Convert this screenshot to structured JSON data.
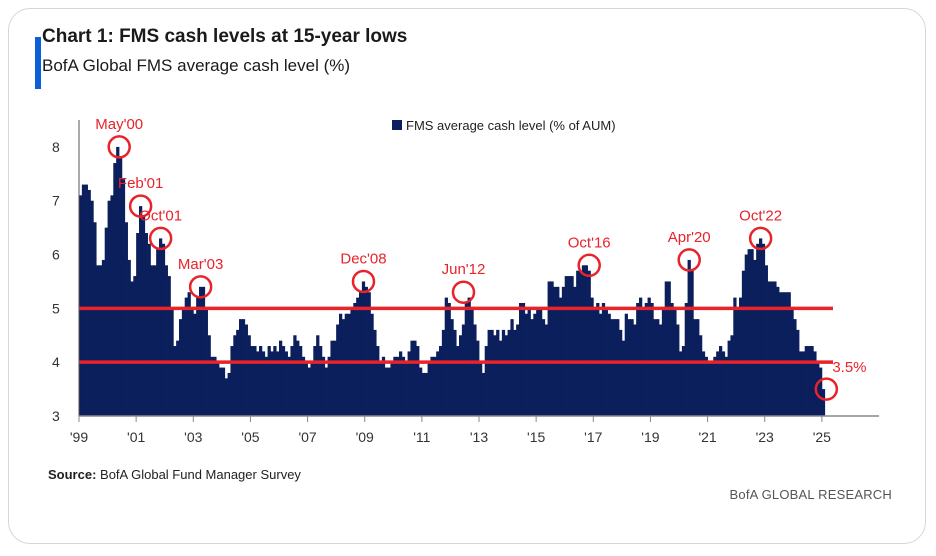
{
  "header": {
    "title": "Chart 1: FMS cash levels at 15-year lows",
    "subtitle": "BofA Global FMS average cash level (%)"
  },
  "footer": {
    "source_label": "Source:",
    "source_text": "BofA Global Fund Manager Survey",
    "branding": "BofA GLOBAL RESEARCH"
  },
  "colors": {
    "bars": "#0b1f5c",
    "reference_lines": "#e8232a",
    "annotation": "#e8232a",
    "title_accent": "#0a5fd6"
  },
  "chart_data": {
    "type": "bar",
    "title": "Chart 1: FMS cash levels at 15-year lows",
    "subtitle": "BofA Global FMS average cash level (%)",
    "legend": {
      "label": "FMS average cash level (% of AUM)",
      "position": "top-center"
    },
    "xlim": [
      1999,
      2027
    ],
    "ylim": [
      3,
      8.5
    ],
    "yticks": [
      3,
      4,
      5,
      6,
      7,
      8
    ],
    "xticks": [
      {
        "year": 1999,
        "label": "'99"
      },
      {
        "year": 2001,
        "label": "'01"
      },
      {
        "year": 2003,
        "label": "'03"
      },
      {
        "year": 2005,
        "label": "'05"
      },
      {
        "year": 2007,
        "label": "'07"
      },
      {
        "year": 2009,
        "label": "'09"
      },
      {
        "year": 2011,
        "label": "'11"
      },
      {
        "year": 2013,
        "label": "'13"
      },
      {
        "year": 2015,
        "label": "'15"
      },
      {
        "year": 2017,
        "label": "'17"
      },
      {
        "year": 2019,
        "label": "'19"
      },
      {
        "year": 2021,
        "label": "'21"
      },
      {
        "year": 2023,
        "label": "'23"
      },
      {
        "year": 2025,
        "label": "'25"
      }
    ],
    "grid": false,
    "reference_lines": [
      5.0,
      4.0
    ],
    "series": [
      {
        "name": "FMS average cash level (% of AUM)",
        "points": [
          [
            1999.0,
            7.1
          ],
          [
            1999.1,
            7.3
          ],
          [
            1999.2,
            7.3
          ],
          [
            1999.3,
            7.2
          ],
          [
            1999.4,
            7.0
          ],
          [
            1999.5,
            6.6
          ],
          [
            1999.6,
            5.8
          ],
          [
            1999.7,
            5.8
          ],
          [
            1999.8,
            5.9
          ],
          [
            1999.9,
            6.5
          ],
          [
            2000.0,
            7.0
          ],
          [
            2000.1,
            7.1
          ],
          [
            2000.2,
            7.7
          ],
          [
            2000.3,
            8.0
          ],
          [
            2000.4,
            7.8
          ],
          [
            2000.5,
            7.4
          ],
          [
            2000.6,
            6.6
          ],
          [
            2000.7,
            5.9
          ],
          [
            2000.8,
            5.5
          ],
          [
            2000.9,
            5.6
          ],
          [
            2001.0,
            6.4
          ],
          [
            2001.1,
            6.9
          ],
          [
            2001.2,
            6.7
          ],
          [
            2001.3,
            6.4
          ],
          [
            2001.4,
            6.2
          ],
          [
            2001.5,
            5.8
          ],
          [
            2001.6,
            5.8
          ],
          [
            2001.7,
            6.1
          ],
          [
            2001.8,
            6.3
          ],
          [
            2001.9,
            6.2
          ],
          [
            2002.0,
            5.8
          ],
          [
            2002.1,
            5.6
          ],
          [
            2002.2,
            5.0
          ],
          [
            2002.3,
            4.3
          ],
          [
            2002.4,
            4.4
          ],
          [
            2002.5,
            4.8
          ],
          [
            2002.6,
            5.0
          ],
          [
            2002.7,
            5.2
          ],
          [
            2002.8,
            5.3
          ],
          [
            2002.9,
            5.0
          ],
          [
            2003.0,
            4.9
          ],
          [
            2003.1,
            5.2
          ],
          [
            2003.2,
            5.4
          ],
          [
            2003.3,
            5.4
          ],
          [
            2003.4,
            5.0
          ],
          [
            2003.5,
            4.5
          ],
          [
            2003.6,
            4.1
          ],
          [
            2003.7,
            4.1
          ],
          [
            2003.8,
            4.0
          ],
          [
            2003.9,
            3.9
          ],
          [
            2004.0,
            3.9
          ],
          [
            2004.1,
            3.7
          ],
          [
            2004.2,
            3.8
          ],
          [
            2004.3,
            4.3
          ],
          [
            2004.4,
            4.5
          ],
          [
            2004.5,
            4.6
          ],
          [
            2004.6,
            4.8
          ],
          [
            2004.7,
            4.8
          ],
          [
            2004.8,
            4.7
          ],
          [
            2004.9,
            4.5
          ],
          [
            2005.0,
            4.3
          ],
          [
            2005.1,
            4.3
          ],
          [
            2005.2,
            4.2
          ],
          [
            2005.3,
            4.3
          ],
          [
            2005.4,
            4.2
          ],
          [
            2005.5,
            4.1
          ],
          [
            2005.6,
            4.3
          ],
          [
            2005.7,
            4.2
          ],
          [
            2005.8,
            4.3
          ],
          [
            2005.9,
            4.2
          ],
          [
            2006.0,
            4.4
          ],
          [
            2006.1,
            4.3
          ],
          [
            2006.2,
            4.2
          ],
          [
            2006.3,
            4.1
          ],
          [
            2006.4,
            4.3
          ],
          [
            2006.5,
            4.5
          ],
          [
            2006.6,
            4.4
          ],
          [
            2006.7,
            4.3
          ],
          [
            2006.8,
            4.1
          ],
          [
            2006.9,
            4.0
          ],
          [
            2007.0,
            3.9
          ],
          [
            2007.1,
            4.0
          ],
          [
            2007.2,
            4.3
          ],
          [
            2007.3,
            4.5
          ],
          [
            2007.4,
            4.3
          ],
          [
            2007.5,
            4.1
          ],
          [
            2007.6,
            3.9
          ],
          [
            2007.7,
            4.1
          ],
          [
            2007.8,
            4.4
          ],
          [
            2007.9,
            4.4
          ],
          [
            2008.0,
            4.7
          ],
          [
            2008.1,
            4.9
          ],
          [
            2008.2,
            4.8
          ],
          [
            2008.3,
            4.9
          ],
          [
            2008.4,
            4.9
          ],
          [
            2008.5,
            5.0
          ],
          [
            2008.6,
            5.1
          ],
          [
            2008.7,
            5.2
          ],
          [
            2008.8,
            5.3
          ],
          [
            2008.9,
            5.5
          ],
          [
            2009.0,
            5.4
          ],
          [
            2009.1,
            5.3
          ],
          [
            2009.2,
            4.9
          ],
          [
            2009.3,
            4.6
          ],
          [
            2009.4,
            4.3
          ],
          [
            2009.5,
            4.0
          ],
          [
            2009.6,
            4.1
          ],
          [
            2009.7,
            3.9
          ],
          [
            2009.8,
            3.9
          ],
          [
            2009.9,
            4.0
          ],
          [
            2010.0,
            4.1
          ],
          [
            2010.1,
            4.1
          ],
          [
            2010.2,
            4.2
          ],
          [
            2010.3,
            4.1
          ],
          [
            2010.4,
            4.0
          ],
          [
            2010.5,
            4.2
          ],
          [
            2010.6,
            4.4
          ],
          [
            2010.7,
            4.4
          ],
          [
            2010.8,
            4.3
          ],
          [
            2010.9,
            3.9
          ],
          [
            2011.0,
            3.8
          ],
          [
            2011.1,
            3.8
          ],
          [
            2011.2,
            4.0
          ],
          [
            2011.3,
            4.1
          ],
          [
            2011.4,
            4.1
          ],
          [
            2011.5,
            4.2
          ],
          [
            2011.6,
            4.3
          ],
          [
            2011.7,
            4.6
          ],
          [
            2011.8,
            5.2
          ],
          [
            2011.9,
            5.1
          ],
          [
            2012.0,
            4.8
          ],
          [
            2012.1,
            4.6
          ],
          [
            2012.2,
            4.3
          ],
          [
            2012.3,
            4.5
          ],
          [
            2012.4,
            4.7
          ],
          [
            2012.5,
            5.1
          ],
          [
            2012.6,
            5.2
          ],
          [
            2012.7,
            5.0
          ],
          [
            2012.8,
            4.7
          ],
          [
            2012.9,
            4.4
          ],
          [
            2013.0,
            4.0
          ],
          [
            2013.1,
            3.8
          ],
          [
            2013.2,
            4.3
          ],
          [
            2013.3,
            4.6
          ],
          [
            2013.4,
            4.6
          ],
          [
            2013.5,
            4.5
          ],
          [
            2013.6,
            4.6
          ],
          [
            2013.7,
            4.4
          ],
          [
            2013.8,
            4.6
          ],
          [
            2013.9,
            4.5
          ],
          [
            2014.0,
            4.6
          ],
          [
            2014.1,
            4.8
          ],
          [
            2014.2,
            4.6
          ],
          [
            2014.3,
            4.7
          ],
          [
            2014.4,
            5.1
          ],
          [
            2014.5,
            5.1
          ],
          [
            2014.6,
            4.9
          ],
          [
            2014.7,
            5.0
          ],
          [
            2014.8,
            4.8
          ],
          [
            2014.9,
            4.9
          ],
          [
            2015.0,
            5.0
          ],
          [
            2015.1,
            5.0
          ],
          [
            2015.2,
            4.8
          ],
          [
            2015.3,
            4.7
          ],
          [
            2015.4,
            5.5
          ],
          [
            2015.5,
            5.5
          ],
          [
            2015.6,
            5.4
          ],
          [
            2015.7,
            5.4
          ],
          [
            2015.8,
            5.2
          ],
          [
            2015.9,
            5.4
          ],
          [
            2016.0,
            5.6
          ],
          [
            2016.1,
            5.6
          ],
          [
            2016.2,
            5.6
          ],
          [
            2016.3,
            5.4
          ],
          [
            2016.4,
            5.7
          ],
          [
            2016.5,
            5.7
          ],
          [
            2016.6,
            5.8
          ],
          [
            2016.7,
            5.8
          ],
          [
            2016.8,
            5.7
          ],
          [
            2016.9,
            5.2
          ],
          [
            2017.0,
            5.0
          ],
          [
            2017.1,
            5.1
          ],
          [
            2017.2,
            4.9
          ],
          [
            2017.3,
            5.1
          ],
          [
            2017.4,
            5.0
          ],
          [
            2017.5,
            4.9
          ],
          [
            2017.6,
            4.8
          ],
          [
            2017.7,
            4.8
          ],
          [
            2017.8,
            4.8
          ],
          [
            2017.9,
            4.6
          ],
          [
            2018.0,
            4.4
          ],
          [
            2018.1,
            4.9
          ],
          [
            2018.2,
            4.8
          ],
          [
            2018.3,
            4.8
          ],
          [
            2018.4,
            4.7
          ],
          [
            2018.5,
            5.1
          ],
          [
            2018.6,
            5.2
          ],
          [
            2018.7,
            5.0
          ],
          [
            2018.8,
            5.1
          ],
          [
            2018.9,
            5.2
          ],
          [
            2019.0,
            5.1
          ],
          [
            2019.1,
            4.8
          ],
          [
            2019.2,
            4.8
          ],
          [
            2019.3,
            4.7
          ],
          [
            2019.4,
            5.0
          ],
          [
            2019.5,
            5.5
          ],
          [
            2019.6,
            5.5
          ],
          [
            2019.7,
            5.1
          ],
          [
            2019.8,
            5.0
          ],
          [
            2019.9,
            4.7
          ],
          [
            2020.0,
            4.2
          ],
          [
            2020.1,
            4.3
          ],
          [
            2020.2,
            5.1
          ],
          [
            2020.3,
            5.9
          ],
          [
            2020.4,
            5.7
          ],
          [
            2020.5,
            4.8
          ],
          [
            2020.6,
            4.8
          ],
          [
            2020.7,
            4.5
          ],
          [
            2020.8,
            4.2
          ],
          [
            2020.9,
            4.1
          ],
          [
            2021.0,
            4.0
          ],
          [
            2021.1,
            4.0
          ],
          [
            2021.2,
            4.1
          ],
          [
            2021.3,
            4.2
          ],
          [
            2021.4,
            4.3
          ],
          [
            2021.5,
            4.2
          ],
          [
            2021.6,
            4.1
          ],
          [
            2021.7,
            4.4
          ],
          [
            2021.8,
            4.5
          ],
          [
            2021.9,
            5.2
          ],
          [
            2022.0,
            5.0
          ],
          [
            2022.1,
            5.2
          ],
          [
            2022.2,
            5.7
          ],
          [
            2022.3,
            6.0
          ],
          [
            2022.4,
            6.1
          ],
          [
            2022.5,
            6.1
          ],
          [
            2022.6,
            5.9
          ],
          [
            2022.7,
            6.2
          ],
          [
            2022.8,
            6.3
          ],
          [
            2022.9,
            6.2
          ],
          [
            2023.0,
            5.8
          ],
          [
            2023.1,
            5.5
          ],
          [
            2023.2,
            5.5
          ],
          [
            2023.3,
            5.5
          ],
          [
            2023.4,
            5.4
          ],
          [
            2023.5,
            5.3
          ],
          [
            2023.6,
            5.3
          ],
          [
            2023.7,
            5.3
          ],
          [
            2023.8,
            5.3
          ],
          [
            2023.9,
            5.0
          ],
          [
            2024.0,
            4.8
          ],
          [
            2024.1,
            4.6
          ],
          [
            2024.2,
            4.2
          ],
          [
            2024.3,
            4.2
          ],
          [
            2024.4,
            4.3
          ],
          [
            2024.5,
            4.3
          ],
          [
            2024.6,
            4.3
          ],
          [
            2024.7,
            4.2
          ],
          [
            2024.8,
            4.0
          ],
          [
            2024.9,
            3.9
          ],
          [
            2025.0,
            3.5
          ]
        ]
      }
    ],
    "annotations": [
      {
        "label": "May'00",
        "x": 2000.35,
        "y": 8.0,
        "position": "above"
      },
      {
        "label": "Feb'01",
        "x": 2001.1,
        "y": 6.9,
        "position": "above"
      },
      {
        "label": "Oct'01",
        "x": 2001.8,
        "y": 6.3,
        "position": "above"
      },
      {
        "label": "Mar'03",
        "x": 2003.2,
        "y": 5.4,
        "position": "above"
      },
      {
        "label": "Dec'08",
        "x": 2008.9,
        "y": 5.5,
        "position": "above"
      },
      {
        "label": "Jun'12",
        "x": 2012.4,
        "y": 5.3,
        "position": "above"
      },
      {
        "label": "Oct'16",
        "x": 2016.8,
        "y": 5.8,
        "position": "above"
      },
      {
        "label": "Apr'20",
        "x": 2020.3,
        "y": 5.9,
        "position": "above"
      },
      {
        "label": "Oct'22",
        "x": 2022.8,
        "y": 6.3,
        "position": "above"
      },
      {
        "label": "3.5%",
        "x": 2025.1,
        "y": 3.5,
        "position": "upper-right"
      }
    ]
  }
}
